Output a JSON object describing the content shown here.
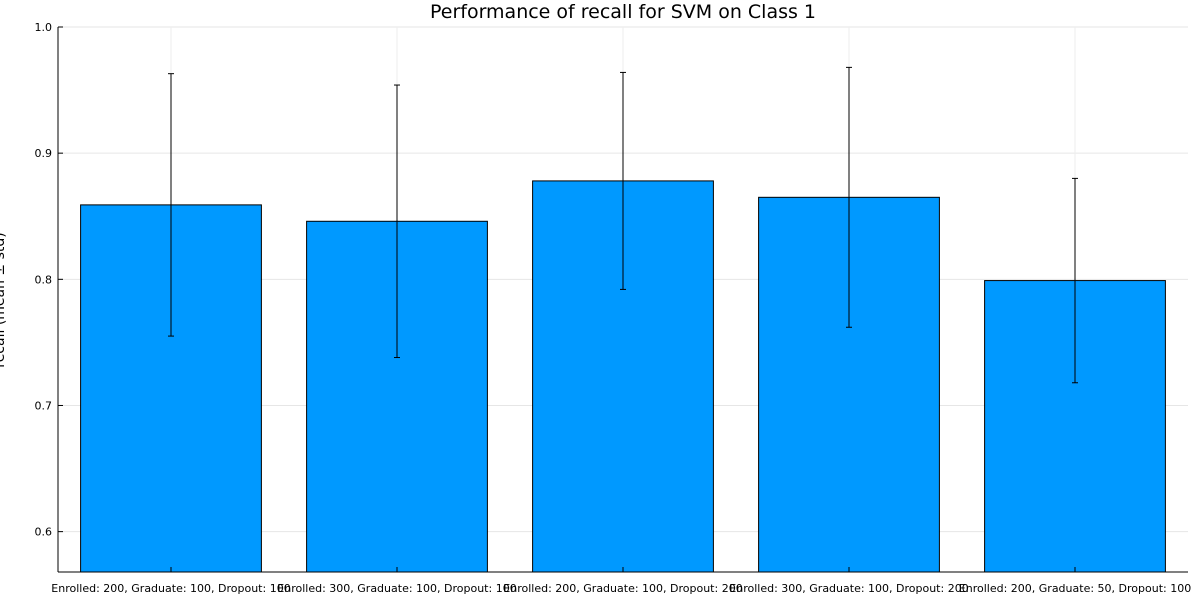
{
  "chart_data": {
    "type": "bar",
    "title": "Performance of recall for SVM on Class 1",
    "xlabel": "",
    "ylabel": "recall (mean ± std)",
    "ylim": [
      0.568,
      1.0
    ],
    "yticks": [
      0.6,
      0.7,
      0.8,
      0.9,
      1.0
    ],
    "ytick_labels": [
      "0.6",
      "0.7",
      "0.8",
      "0.9",
      "1.0"
    ],
    "grid": true,
    "legend": "none",
    "bar_color": "#0099ff",
    "categories": [
      "Enrolled: 200, Graduate: 100, Dropout: 100",
      "Enrolled: 300, Graduate: 100, Dropout: 100",
      "Enrolled: 200, Graduate: 100, Dropout: 200",
      "Enrolled: 300, Graduate: 100, Dropout: 200",
      "Enrolled: 200, Graduate: 50, Dropout: 100"
    ],
    "values": [
      0.859,
      0.846,
      0.878,
      0.865,
      0.799
    ],
    "errors": [
      0.104,
      0.108,
      0.086,
      0.103,
      0.081
    ]
  }
}
